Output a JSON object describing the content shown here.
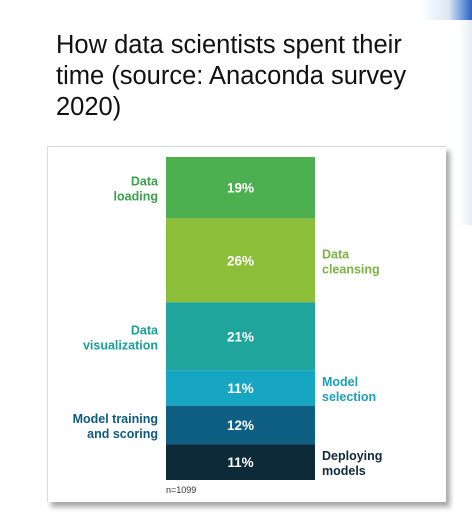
{
  "slide": {
    "title": "How data scientists spent their time (source: Anaconda survey 2020)"
  },
  "chart_data": {
    "type": "bar",
    "stacked": true,
    "orientation": "vertical",
    "title": "",
    "note": "n=1099",
    "unit": "%",
    "series": [
      {
        "category": "Data loading",
        "label_lines": [
          "Data",
          "loading"
        ],
        "value": 19,
        "value_label": "19%",
        "color": "#4caf50",
        "label_color": "#3aa24b",
        "side": "left"
      },
      {
        "category": "Data cleansing",
        "label_lines": [
          "Data",
          "cleansing"
        ],
        "value": 26,
        "value_label": "26%",
        "color": "#8cbe3a",
        "label_color": "#7cb342",
        "side": "right"
      },
      {
        "category": "Data visualization",
        "label_lines": [
          "Data",
          "visualization"
        ],
        "value": 21,
        "value_label": "21%",
        "color": "#20a59c",
        "label_color": "#18a098",
        "side": "left"
      },
      {
        "category": "Model selection",
        "label_lines": [
          "Model",
          "selection"
        ],
        "value": 11,
        "value_label": "11%",
        "color": "#17a6c1",
        "label_color": "#1ba0bb",
        "side": "right"
      },
      {
        "category": "Model training and scoring",
        "label_lines": [
          "Model training",
          "and scoring"
        ],
        "value": 12,
        "value_label": "12%",
        "color": "#0f5f82",
        "label_color": "#0d5a7c",
        "side": "left"
      },
      {
        "category": "Deploying models",
        "label_lines": [
          "Deploying",
          "models"
        ],
        "value": 11,
        "value_label": "11%",
        "color": "#0d2a38",
        "label_color": "#0f2a38",
        "side": "right"
      }
    ]
  }
}
